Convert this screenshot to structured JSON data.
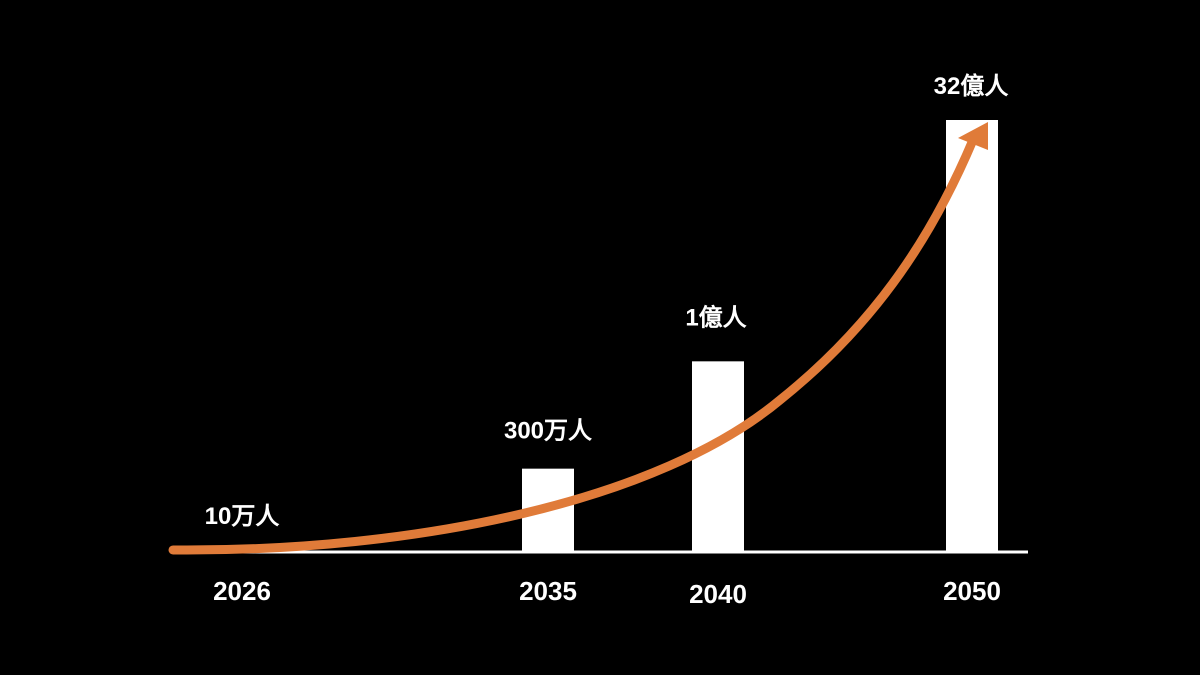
{
  "colors": {
    "background": "#000000",
    "bar": "#FFFFFF",
    "text": "#FFFFFF",
    "trend_arrow": "#E07B39"
  },
  "chart_data": {
    "type": "bar",
    "categories": [
      "2026",
      "2035",
      "2040",
      "2050"
    ],
    "values": [
      100000,
      3000000,
      100000000,
      3200000000
    ],
    "data_labels": [
      "10万人",
      "300万人",
      "1億人",
      "32億人"
    ],
    "title": "",
    "xlabel": "",
    "ylabel": "",
    "grid": false,
    "legend": "none",
    "trend_arrow": true
  }
}
